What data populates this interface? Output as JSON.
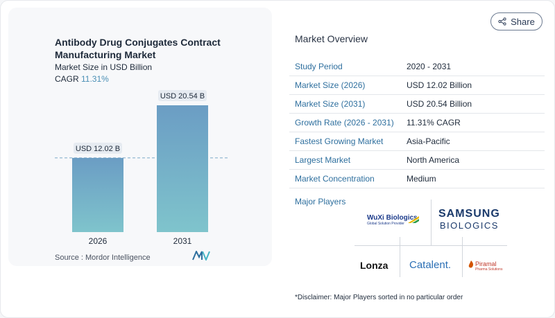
{
  "chart_data": {
    "type": "bar",
    "title": "Antibody Drug Conjugates Contract Manufacturing Market",
    "subtitle": "Market Size in USD Billion",
    "cagr_label": "CAGR",
    "cagr_value": "11.31%",
    "categories": [
      "2026",
      "2031"
    ],
    "values": [
      12.02,
      20.54
    ],
    "data_labels": [
      "USD 12.02 B",
      "USD 20.54 B"
    ],
    "ylim": [
      0,
      20.54
    ],
    "grid": false,
    "reference_line_at": 12.02,
    "colors": {
      "bar_top": "#6b9dc4",
      "bar_bottom": "#7fc4cc",
      "reference_line": "#7aa8c6"
    }
  },
  "source": "Source :  Mordor Intelligence",
  "share_label": "Share",
  "overview": {
    "title": "Market Overview",
    "rows": [
      {
        "key": "Study Period",
        "value": "2020 - 2031"
      },
      {
        "key": "Market Size (2026)",
        "value": "USD 12.02 Billion"
      },
      {
        "key": "Market Size (2031)",
        "value": "USD 20.54 Billion"
      },
      {
        "key": "Growth Rate (2026 - 2031)",
        "value": "11.31% CAGR"
      },
      {
        "key": "Fastest Growing Market",
        "value": "Asia-Pacific"
      },
      {
        "key": "Largest Market",
        "value": "North America"
      },
      {
        "key": "Market Concentration",
        "value": "Medium"
      }
    ]
  },
  "major_players": {
    "title": "Major Players",
    "logos": {
      "wuxi_name": "WuXi Biologics",
      "wuxi_tagline": "Global Solution Provider",
      "samsung_line1": "SAMSUNG",
      "samsung_line2": "BIOLOGICS",
      "lonza": "Lonza",
      "catalent": "Catalent.",
      "piramal_name": "Piramal",
      "piramal_tagline": "Pharma Solutions"
    }
  },
  "disclaimer": "*Disclaimer: Major Players sorted in no particular order"
}
